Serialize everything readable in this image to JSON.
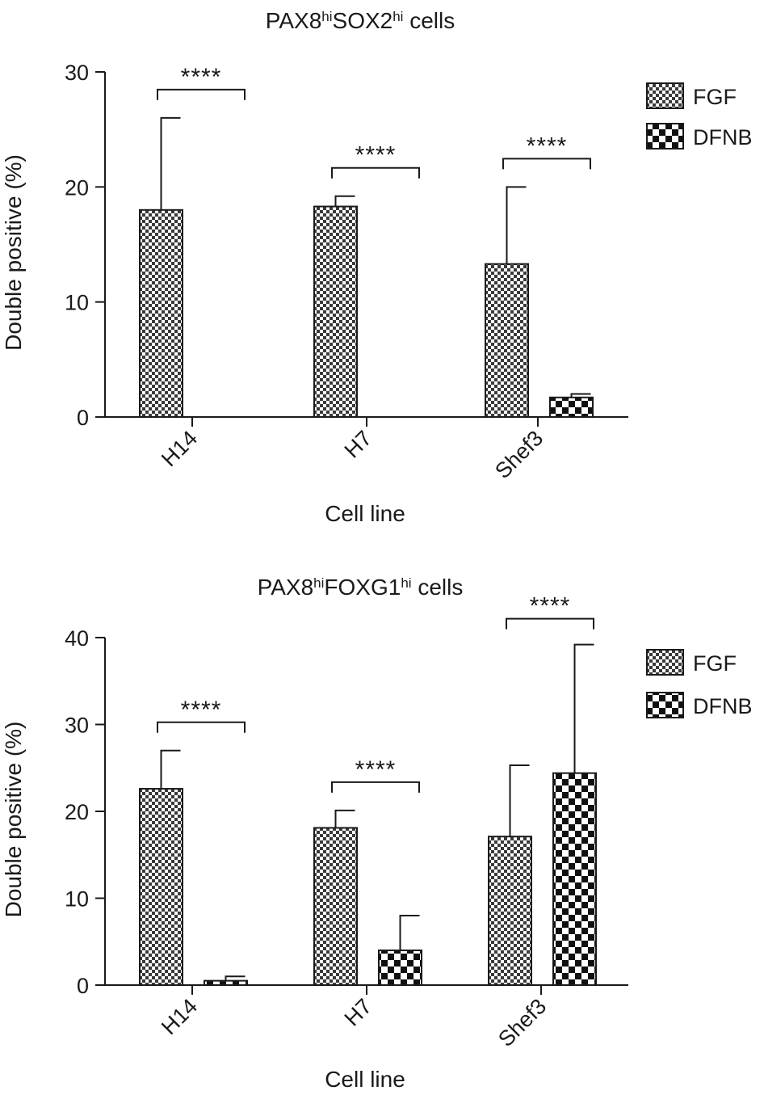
{
  "colors": {
    "ink": "#1a1a1a",
    "background": "#ffffff"
  },
  "chart_data": [
    {
      "type": "bar",
      "title": {
        "parts": [
          {
            "text": "PAX8",
            "sup": false
          },
          {
            "text": "hi",
            "sup": true
          },
          {
            "text": "SOX2",
            "sup": false
          },
          {
            "text": "hi",
            "sup": true
          },
          {
            "text": " cells",
            "sup": false
          }
        ]
      },
      "xlabel": "Cell line",
      "ylabel": "Double positive (%)",
      "ylim": [
        0,
        30
      ],
      "yticks": [
        0,
        10,
        20,
        30
      ],
      "categories": [
        "H14",
        "H7",
        "Shef3"
      ],
      "series": [
        {
          "name": "FGF",
          "pattern": "fine-checker",
          "values": [
            18,
            18.3,
            13.3
          ],
          "errors": [
            8,
            0.9,
            6.7
          ]
        },
        {
          "name": "DFNB",
          "pattern": "coarse-checker",
          "values": [
            0,
            0,
            1.7
          ],
          "errors": [
            0,
            0,
            0.3
          ]
        }
      ],
      "significance": [
        "****",
        "****",
        "****"
      ],
      "legend": "top-right",
      "grid": false
    },
    {
      "type": "bar",
      "title": {
        "parts": [
          {
            "text": "PAX8",
            "sup": false
          },
          {
            "text": "hi",
            "sup": true
          },
          {
            "text": "FOXG1",
            "sup": false
          },
          {
            "text": "hi",
            "sup": true
          },
          {
            "text": " cells",
            "sup": false
          }
        ]
      },
      "xlabel": "Cell line",
      "ylabel": "Double positive (%)",
      "ylim": [
        0,
        40
      ],
      "yticks": [
        0,
        10,
        20,
        30,
        40
      ],
      "categories": [
        "H14",
        "H7",
        "Shef3"
      ],
      "series": [
        {
          "name": "FGF",
          "pattern": "fine-checker",
          "values": [
            22.6,
            18.1,
            17.1
          ],
          "errors": [
            4.4,
            2,
            8.2
          ]
        },
        {
          "name": "DFNB",
          "pattern": "coarse-checker",
          "values": [
            0.5,
            4,
            24.4
          ],
          "errors": [
            0.5,
            4,
            14.8
          ]
        }
      ],
      "significance": [
        "****",
        "****",
        "****"
      ],
      "legend": "top-right",
      "grid": false
    }
  ]
}
